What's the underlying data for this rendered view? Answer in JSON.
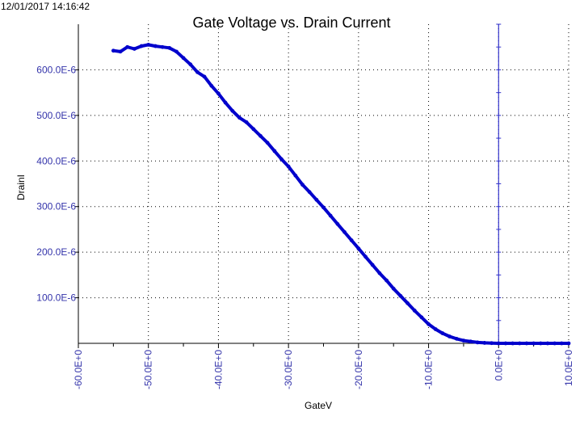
{
  "timestamp": "12/01/2017 14:16:42",
  "colors": {
    "data": "#0000cc",
    "axis": "#000000",
    "label": "#3333aa",
    "grid": "#000000",
    "marker_line": "#3333cc"
  },
  "chart_data": {
    "type": "line",
    "title": "Gate Voltage vs. Drain Current",
    "xlabel": "GateV",
    "ylabel": "DrainI",
    "xlim": [
      -60,
      10
    ],
    "ylim": [
      0,
      700
    ],
    "grid": true,
    "x_ticks": [
      -60,
      -50,
      -40,
      -30,
      -20,
      -10,
      0,
      10
    ],
    "x_tick_labels": [
      "-60.0E+0",
      "-50.0E+0",
      "-40.0E+0",
      "-30.0E+0",
      "-20.0E+0",
      "-10.0E+0",
      "0.0E+0",
      "10.0E+0"
    ],
    "y_ticks": [
      100,
      200,
      300,
      400,
      500,
      600
    ],
    "y_tick_labels": [
      "100.0E-6",
      "200.0E-6",
      "300.0E-6",
      "400.0E-6",
      "500.0E-6",
      "600.0E-6"
    ],
    "vertical_marker_x": 0,
    "series": [
      {
        "x": [
          -55,
          -54,
          -53,
          -52,
          -51,
          -50,
          -49,
          -48,
          -47,
          -46,
          -45,
          -44,
          -43,
          -42,
          -41,
          -40,
          -39,
          -38,
          -37,
          -36,
          -35,
          -34,
          -33,
          -32,
          -31,
          -30,
          -29,
          -28,
          -27,
          -26,
          -25,
          -24,
          -23,
          -22,
          -21,
          -20,
          -19,
          -18,
          -17,
          -16,
          -15,
          -14,
          -13,
          -12,
          -11,
          -10,
          -9,
          -8,
          -7,
          -6,
          -5,
          -4,
          -3,
          -2,
          -1,
          0,
          1,
          2,
          3,
          4,
          5,
          6,
          7,
          8,
          9,
          10
        ],
        "y": [
          642,
          640,
          650,
          646,
          652,
          655,
          652,
          650,
          648,
          640,
          626,
          612,
          595,
          585,
          565,
          548,
          528,
          510,
          495,
          485,
          470,
          455,
          440,
          422,
          404,
          388,
          368,
          348,
          332,
          315,
          298,
          280,
          262,
          244,
          226,
          208,
          190,
          172,
          154,
          138,
          120,
          104,
          88,
          72,
          57,
          42,
          31,
          22,
          15,
          10,
          6,
          4,
          2,
          1,
          0.5,
          0,
          0,
          0,
          0,
          0,
          0,
          0,
          0,
          0,
          0,
          0
        ]
      }
    ]
  }
}
